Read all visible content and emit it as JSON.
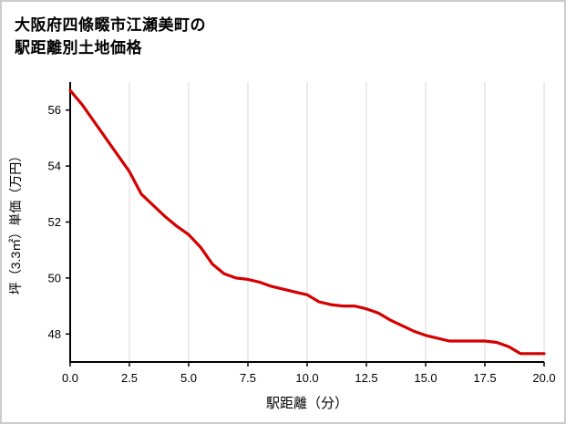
{
  "title": {
    "line1": "大阪府四條畷市江瀬美町の",
    "line2": "駅距離別土地価格"
  },
  "chart_data": {
    "type": "line",
    "title": "大阪府四條畷市江瀬美町の駅距離別土地価格",
    "xlabel": "駅距離（分）",
    "ylabel": "坪（3.3㎡）単価（万円）",
    "xlim": [
      0,
      20
    ],
    "ylim": [
      47,
      57
    ],
    "x_ticks": [
      0,
      2.5,
      5,
      7.5,
      10,
      12.5,
      15,
      17.5,
      20
    ],
    "x_tick_labels": [
      "0.0",
      "2.5",
      "5.0",
      "7.5",
      "10.0",
      "12.5",
      "15.0",
      "17.5",
      "20.0"
    ],
    "y_ticks": [
      48,
      50,
      52,
      54,
      56
    ],
    "y_tick_labels": [
      "48",
      "50",
      "52",
      "54",
      "56"
    ],
    "grid": "vertical-only",
    "legend": "none",
    "line_color": "#d40000",
    "grid_color": "#d9d9d9",
    "axis_color": "#000000",
    "x": [
      0,
      0.5,
      1,
      1.5,
      2,
      2.5,
      3,
      3.5,
      4,
      4.5,
      5,
      5.5,
      6,
      6.5,
      7,
      7.5,
      8,
      8.5,
      9,
      9.5,
      10,
      10.5,
      11,
      11.5,
      12,
      12.5,
      13,
      13.5,
      14,
      14.5,
      15,
      15.5,
      16,
      16.5,
      17,
      17.5,
      18,
      18.5,
      19,
      19.5,
      20
    ],
    "values": [
      56.7,
      56.2,
      55.6,
      55.0,
      54.4,
      53.8,
      53.0,
      52.6,
      52.2,
      51.85,
      51.55,
      51.1,
      50.5,
      50.15,
      50.0,
      49.95,
      49.85,
      49.7,
      49.6,
      49.5,
      49.4,
      49.15,
      49.05,
      49.0,
      49.0,
      48.9,
      48.75,
      48.5,
      48.3,
      48.1,
      47.95,
      47.85,
      47.75,
      47.75,
      47.75,
      47.75,
      47.7,
      47.55,
      47.3,
      47.3,
      47.3
    ]
  }
}
